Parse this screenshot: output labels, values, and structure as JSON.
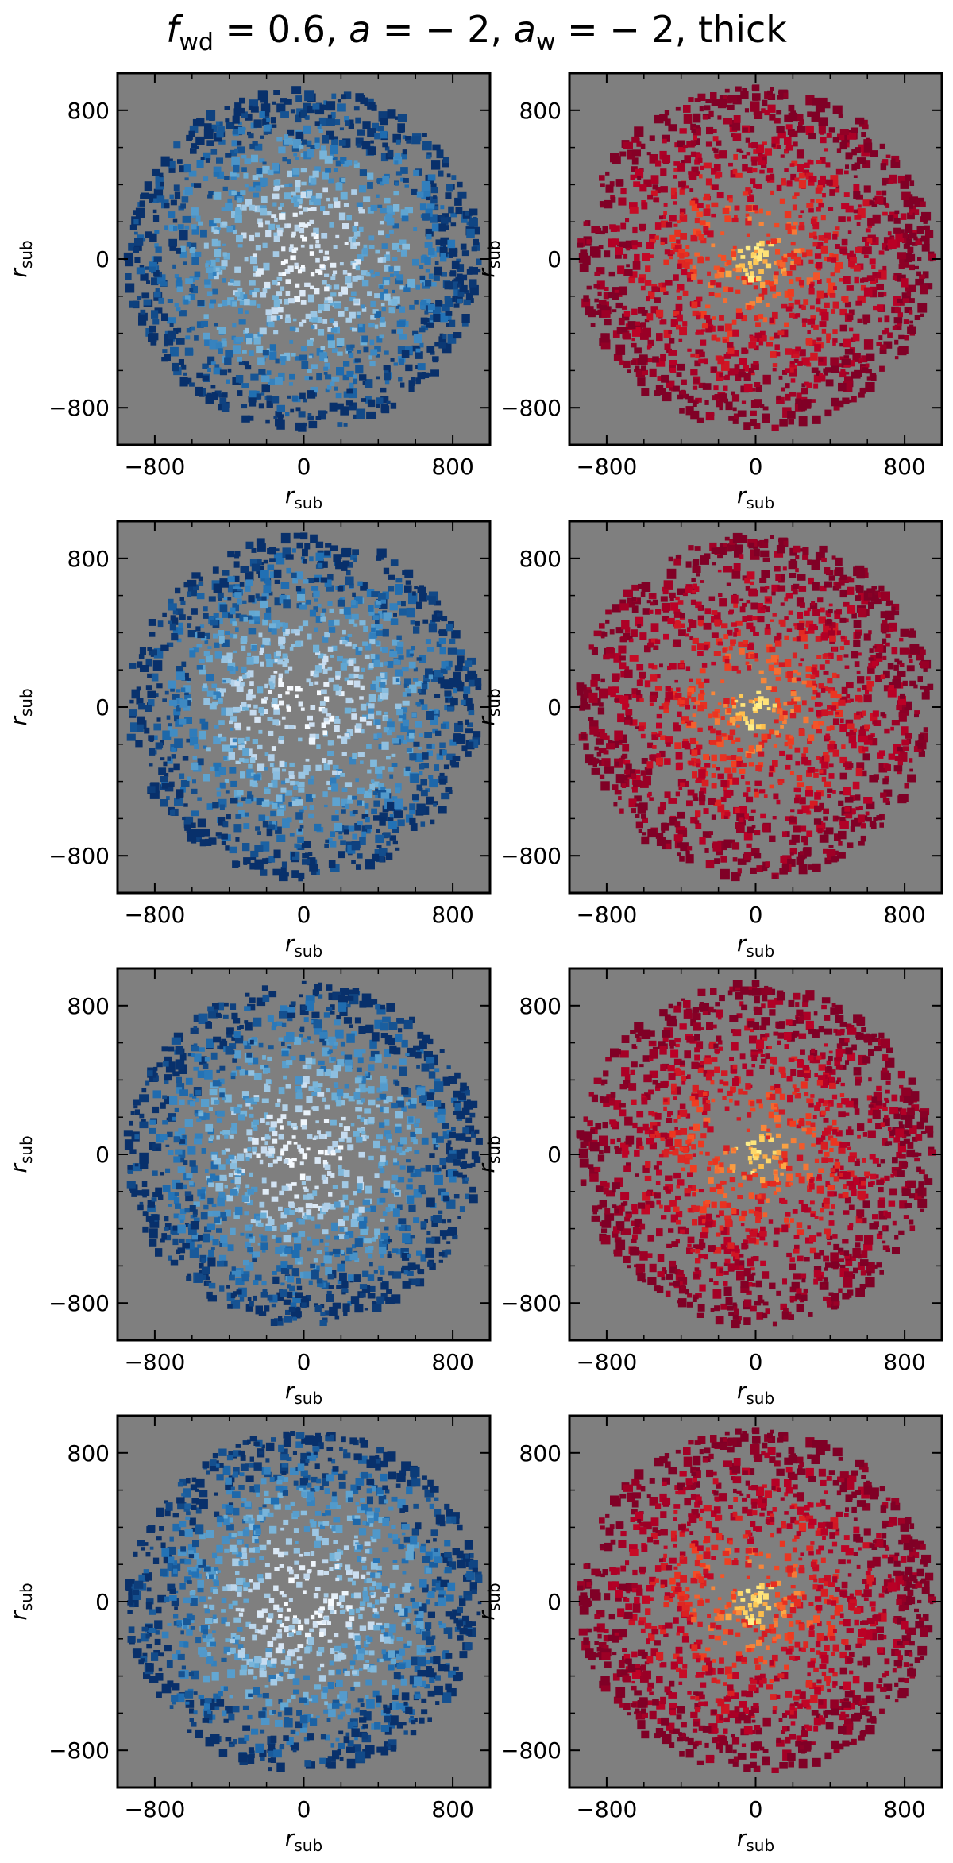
{
  "title": {
    "prefix_var": "f",
    "prefix_sub": "wd",
    "part1": " = 0.6, ",
    "a_var": "a",
    "part2": " = − 2, ",
    "aw_var": "a",
    "aw_sub": "w",
    "part3": " = − 2, thick"
  },
  "colors": {
    "background": "#7f7f7f",
    "blue_cmap": [
      "#f7fbff",
      "#c6dbef",
      "#6baed6",
      "#2171b5",
      "#08306b"
    ],
    "red_cmap": [
      "#ffff9e",
      "#fec44f",
      "#f03b20",
      "#bd0026",
      "#800026"
    ]
  },
  "chart_data": [
    {
      "type": "heatmap",
      "panel": "row1-left",
      "colormap": "Blues",
      "xlabel_var": "r",
      "xlabel_sub": "sub",
      "ylabel_var": "r",
      "ylabel_sub": "sub",
      "xticks": [
        -800,
        0,
        800
      ],
      "yticks": [
        -800,
        0,
        800
      ],
      "xlim": [
        -1000,
        1000
      ],
      "ylim": [
        -1000,
        1000
      ]
    },
    {
      "type": "heatmap",
      "panel": "row1-right",
      "colormap": "hot-red",
      "xlabel_var": "r",
      "xlabel_sub": "sub",
      "ylabel_var": "r",
      "ylabel_sub": "sub",
      "xticks": [
        -800,
        0,
        800
      ],
      "yticks": [
        -800,
        0,
        800
      ],
      "xlim": [
        -1000,
        1000
      ],
      "ylim": [
        -1000,
        1000
      ]
    },
    {
      "type": "heatmap",
      "panel": "row2-left",
      "colormap": "Blues",
      "xlabel_var": "r",
      "xlabel_sub": "sub",
      "ylabel_var": "r",
      "ylabel_sub": "sub",
      "xticks": [
        -800,
        0,
        800
      ],
      "yticks": [
        -800,
        0,
        800
      ],
      "xlim": [
        -1000,
        1000
      ],
      "ylim": [
        -1000,
        1000
      ]
    },
    {
      "type": "heatmap",
      "panel": "row2-right",
      "colormap": "hot-red",
      "xlabel_var": "r",
      "xlabel_sub": "sub",
      "ylabel_var": "r",
      "ylabel_sub": "sub",
      "xticks": [
        -800,
        0,
        800
      ],
      "yticks": [
        -800,
        0,
        800
      ],
      "xlim": [
        -1000,
        1000
      ],
      "ylim": [
        -1000,
        1000
      ]
    },
    {
      "type": "heatmap",
      "panel": "row3-left",
      "colormap": "Blues",
      "xlabel_var": "r",
      "xlabel_sub": "sub",
      "ylabel_var": "r",
      "ylabel_sub": "sub",
      "xticks": [
        -800,
        0,
        800
      ],
      "yticks": [
        -800,
        0,
        800
      ],
      "xlim": [
        -1000,
        1000
      ],
      "ylim": [
        -1000,
        1000
      ]
    },
    {
      "type": "heatmap",
      "panel": "row3-right",
      "colormap": "hot-red",
      "xlabel_var": "r",
      "xlabel_sub": "sub",
      "ylabel_var": "r",
      "ylabel_sub": "sub",
      "xticks": [
        -800,
        0,
        800
      ],
      "yticks": [
        -800,
        0,
        800
      ],
      "xlim": [
        -1000,
        1000
      ],
      "ylim": [
        -1000,
        1000
      ]
    },
    {
      "type": "heatmap",
      "panel": "row4-left",
      "colormap": "Blues",
      "xlabel_var": "r",
      "xlabel_sub": "sub",
      "ylabel_var": "r",
      "ylabel_sub": "sub",
      "xticks": [
        -800,
        0,
        800
      ],
      "yticks": [
        -800,
        0,
        800
      ],
      "xlim": [
        -1000,
        1000
      ],
      "ylim": [
        -1000,
        1000
      ]
    },
    {
      "type": "heatmap",
      "panel": "row4-right",
      "colormap": "hot-red",
      "xlabel_var": "r",
      "xlabel_sub": "sub",
      "ylabel_var": "r",
      "ylabel_sub": "sub",
      "xticks": [
        -800,
        0,
        800
      ],
      "yticks": [
        -800,
        0,
        800
      ],
      "xlim": [
        -1000,
        1000
      ],
      "ylim": [
        -1000,
        1000
      ]
    }
  ]
}
